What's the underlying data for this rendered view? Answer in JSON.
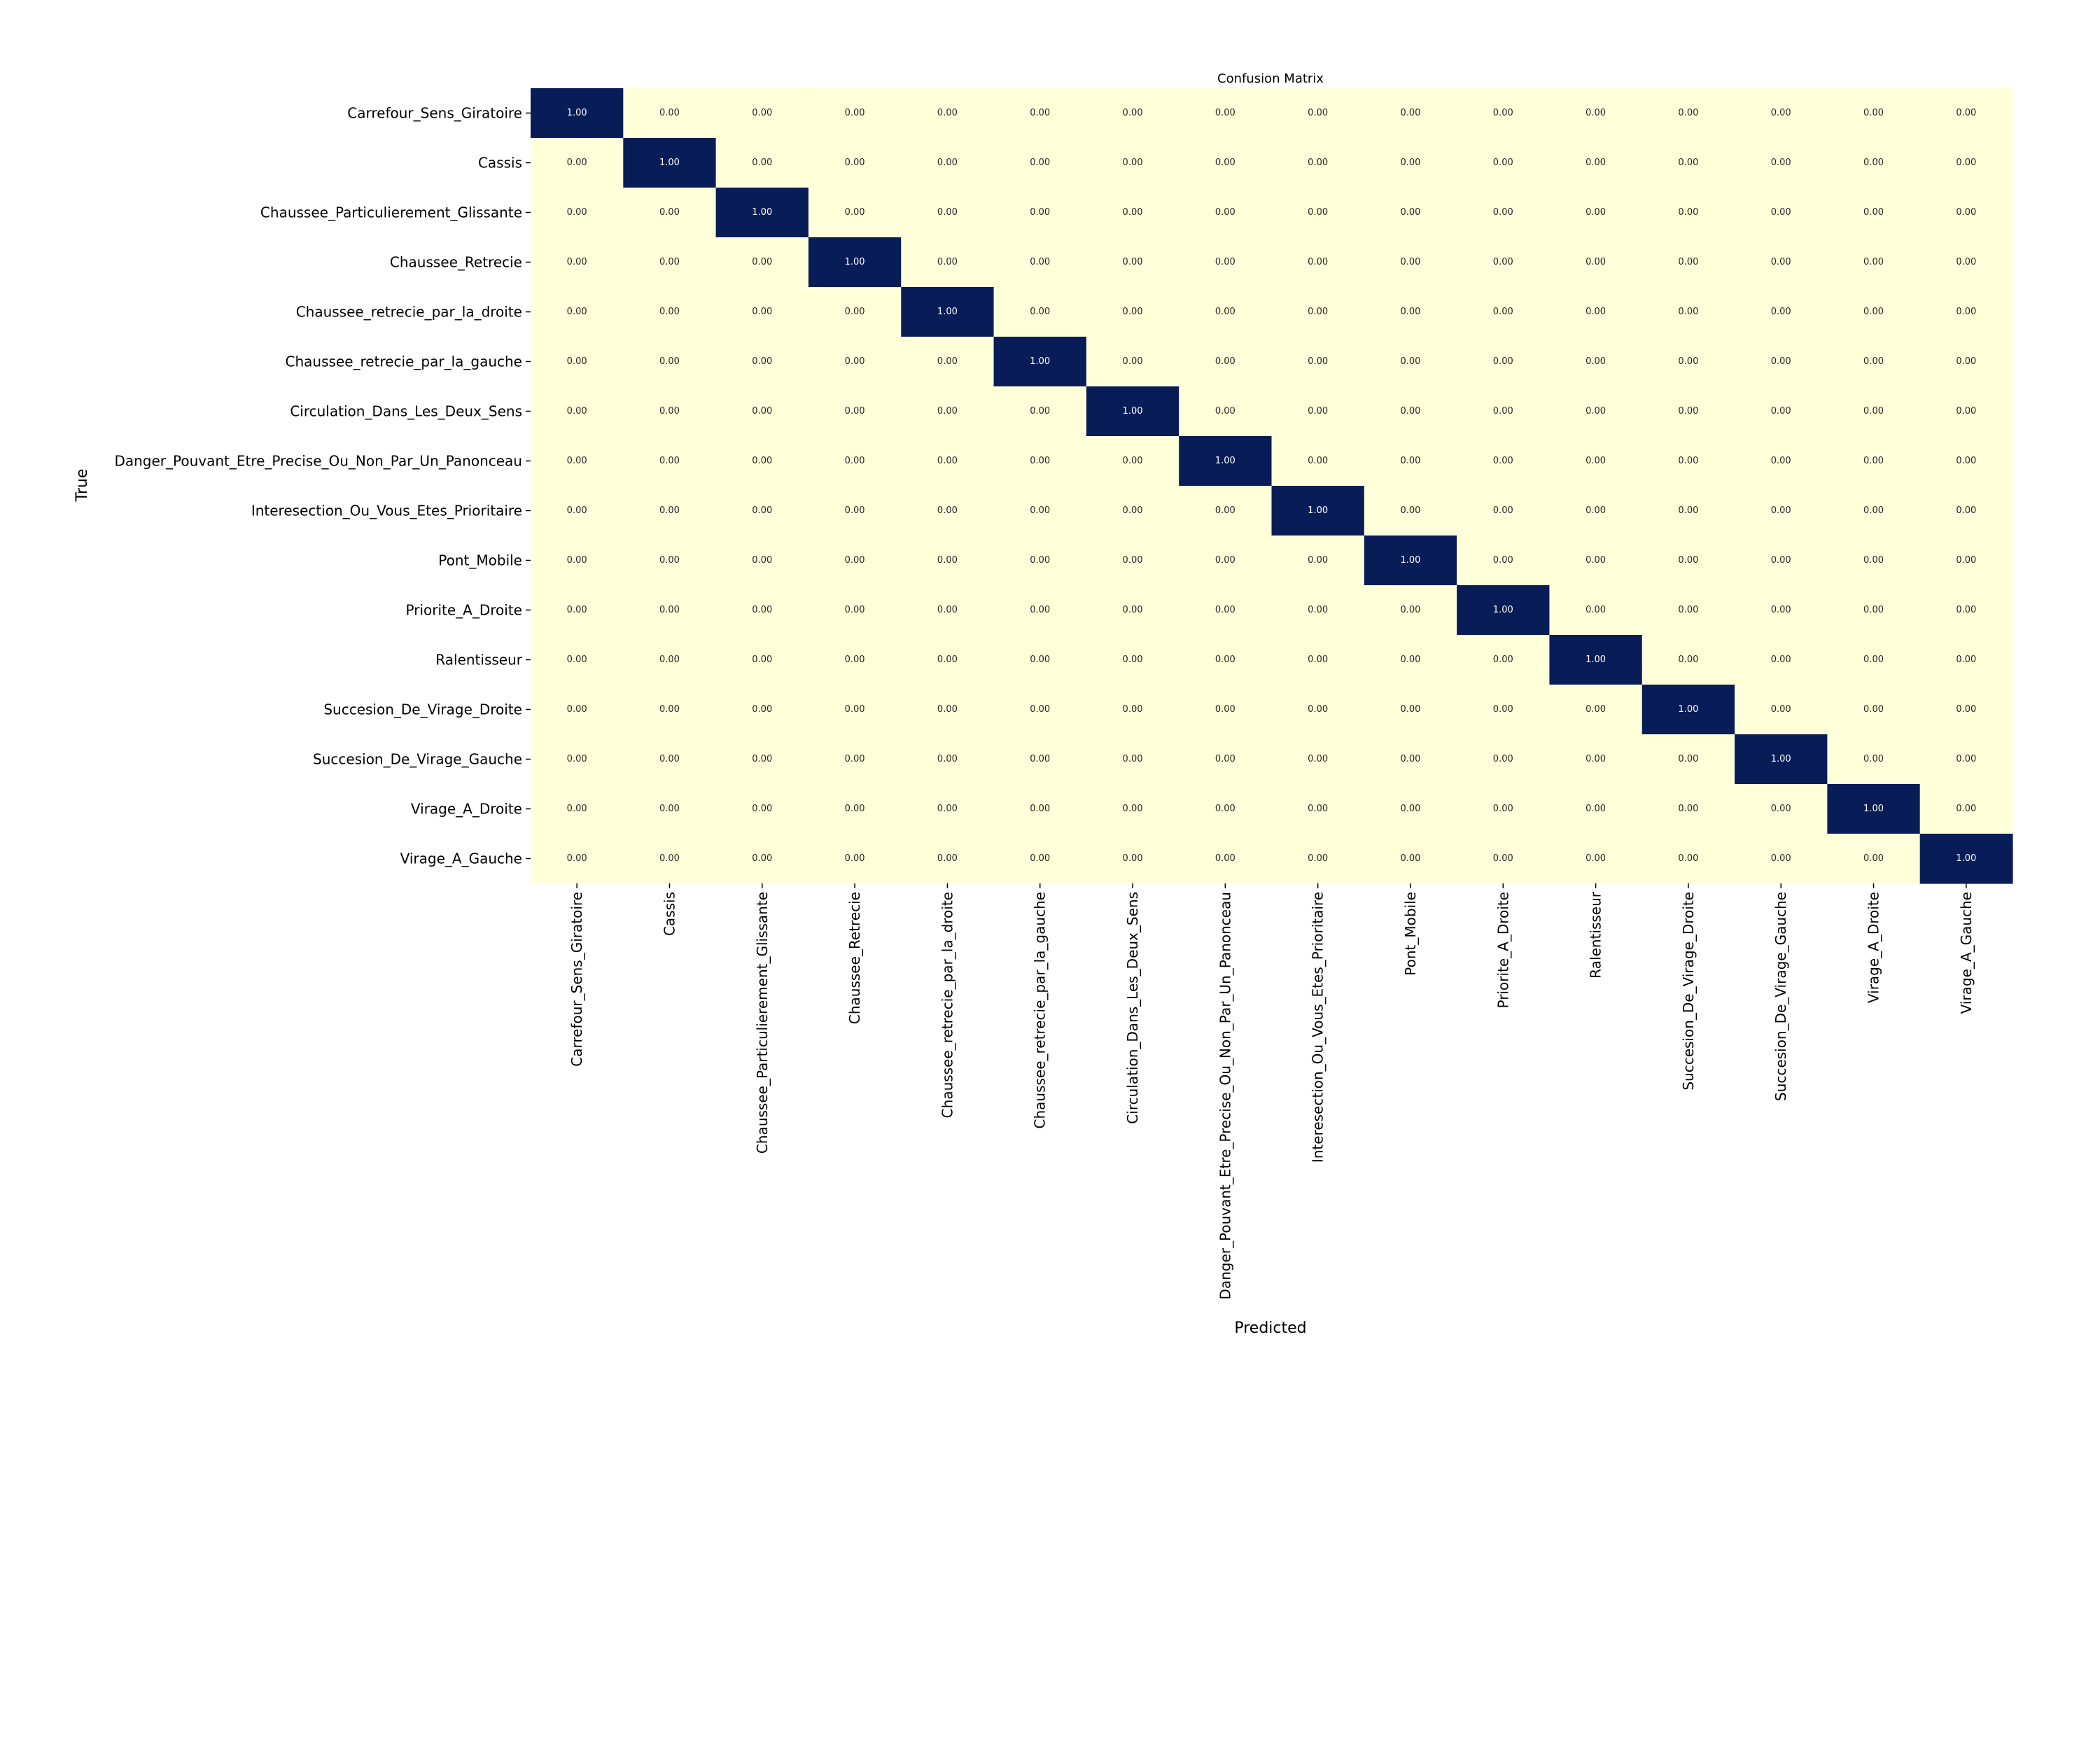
{
  "chart_data": {
    "type": "heatmap",
    "title": "Confusion Matrix",
    "xlabel": "Predicted",
    "ylabel": "True",
    "value_format": "0.00",
    "row_labels": [
      "Carrefour_Sens_Giratoire",
      "Cassis",
      "Chaussee_Particulierement_Glissante",
      "Chaussee_Retrecie",
      "Chaussee_retrecie_par_la_droite",
      "Chaussee_retrecie_par_la_gauche",
      "Circulation_Dans_Les_Deux_Sens",
      "Danger_Pouvant_Etre_Precise_Ou_Non_Par_Un_Panonceau",
      "Interesection_Ou_Vous_Etes_Prioritaire",
      "Pont_Mobile",
      "Priorite_A_Droite",
      "Ralentisseur",
      "Succesion_De_Virage_Droite",
      "Succesion_De_Virage_Gauche",
      "Virage_A_Droite",
      "Virage_A_Gauche"
    ],
    "column_labels": [
      "Carrefour_Sens_Giratoire",
      "Cassis",
      "Chaussee_Particulierement_Glissante",
      "Chaussee_Retrecie",
      "Chaussee_retrecie_par_la_droite",
      "Chaussee_retrecie_par_la_gauche",
      "Circulation_Dans_Les_Deux_Sens",
      "Danger_Pouvant_Etre_Precise_Ou_Non_Par_Un_Panonceau",
      "Interesection_Ou_Vous_Etes_Prioritaire",
      "Pont_Mobile",
      "Priorite_A_Droite",
      "Ralentisseur",
      "Succesion_De_Virage_Droite",
      "Succesion_De_Virage_Gauche",
      "Virage_A_Droite",
      "Virage_A_Gauche"
    ],
    "values": [
      [
        1,
        0,
        0,
        0,
        0,
        0,
        0,
        0,
        0,
        0,
        0,
        0,
        0,
        0,
        0,
        0
      ],
      [
        0,
        1,
        0,
        0,
        0,
        0,
        0,
        0,
        0,
        0,
        0,
        0,
        0,
        0,
        0,
        0
      ],
      [
        0,
        0,
        1,
        0,
        0,
        0,
        0,
        0,
        0,
        0,
        0,
        0,
        0,
        0,
        0,
        0
      ],
      [
        0,
        0,
        0,
        1,
        0,
        0,
        0,
        0,
        0,
        0,
        0,
        0,
        0,
        0,
        0,
        0
      ],
      [
        0,
        0,
        0,
        0,
        1,
        0,
        0,
        0,
        0,
        0,
        0,
        0,
        0,
        0,
        0,
        0
      ],
      [
        0,
        0,
        0,
        0,
        0,
        1,
        0,
        0,
        0,
        0,
        0,
        0,
        0,
        0,
        0,
        0
      ],
      [
        0,
        0,
        0,
        0,
        0,
        0,
        1,
        0,
        0,
        0,
        0,
        0,
        0,
        0,
        0,
        0
      ],
      [
        0,
        0,
        0,
        0,
        0,
        0,
        0,
        1,
        0,
        0,
        0,
        0,
        0,
        0,
        0,
        0
      ],
      [
        0,
        0,
        0,
        0,
        0,
        0,
        0,
        0,
        1,
        0,
        0,
        0,
        0,
        0,
        0,
        0
      ],
      [
        0,
        0,
        0,
        0,
        0,
        0,
        0,
        0,
        0,
        1,
        0,
        0,
        0,
        0,
        0,
        0
      ],
      [
        0,
        0,
        0,
        0,
        0,
        0,
        0,
        0,
        0,
        0,
        1,
        0,
        0,
        0,
        0,
        0
      ],
      [
        0,
        0,
        0,
        0,
        0,
        0,
        0,
        0,
        0,
        0,
        0,
        1,
        0,
        0,
        0,
        0
      ],
      [
        0,
        0,
        0,
        0,
        0,
        0,
        0,
        0,
        0,
        0,
        0,
        0,
        1,
        0,
        0,
        0
      ],
      [
        0,
        0,
        0,
        0,
        0,
        0,
        0,
        0,
        0,
        0,
        0,
        0,
        0,
        1,
        0,
        0
      ],
      [
        0,
        0,
        0,
        0,
        0,
        0,
        0,
        0,
        0,
        0,
        0,
        0,
        0,
        0,
        1,
        0
      ],
      [
        0,
        0,
        0,
        0,
        0,
        0,
        0,
        0,
        0,
        0,
        0,
        0,
        0,
        0,
        0,
        1
      ]
    ],
    "value_range": [
      0,
      1
    ],
    "colors": {
      "low": "#ffffd9",
      "high": "#081d58",
      "text_on_low": "#262626",
      "text_on_high": "#ffffff"
    },
    "legend": "none",
    "grid": false
  }
}
